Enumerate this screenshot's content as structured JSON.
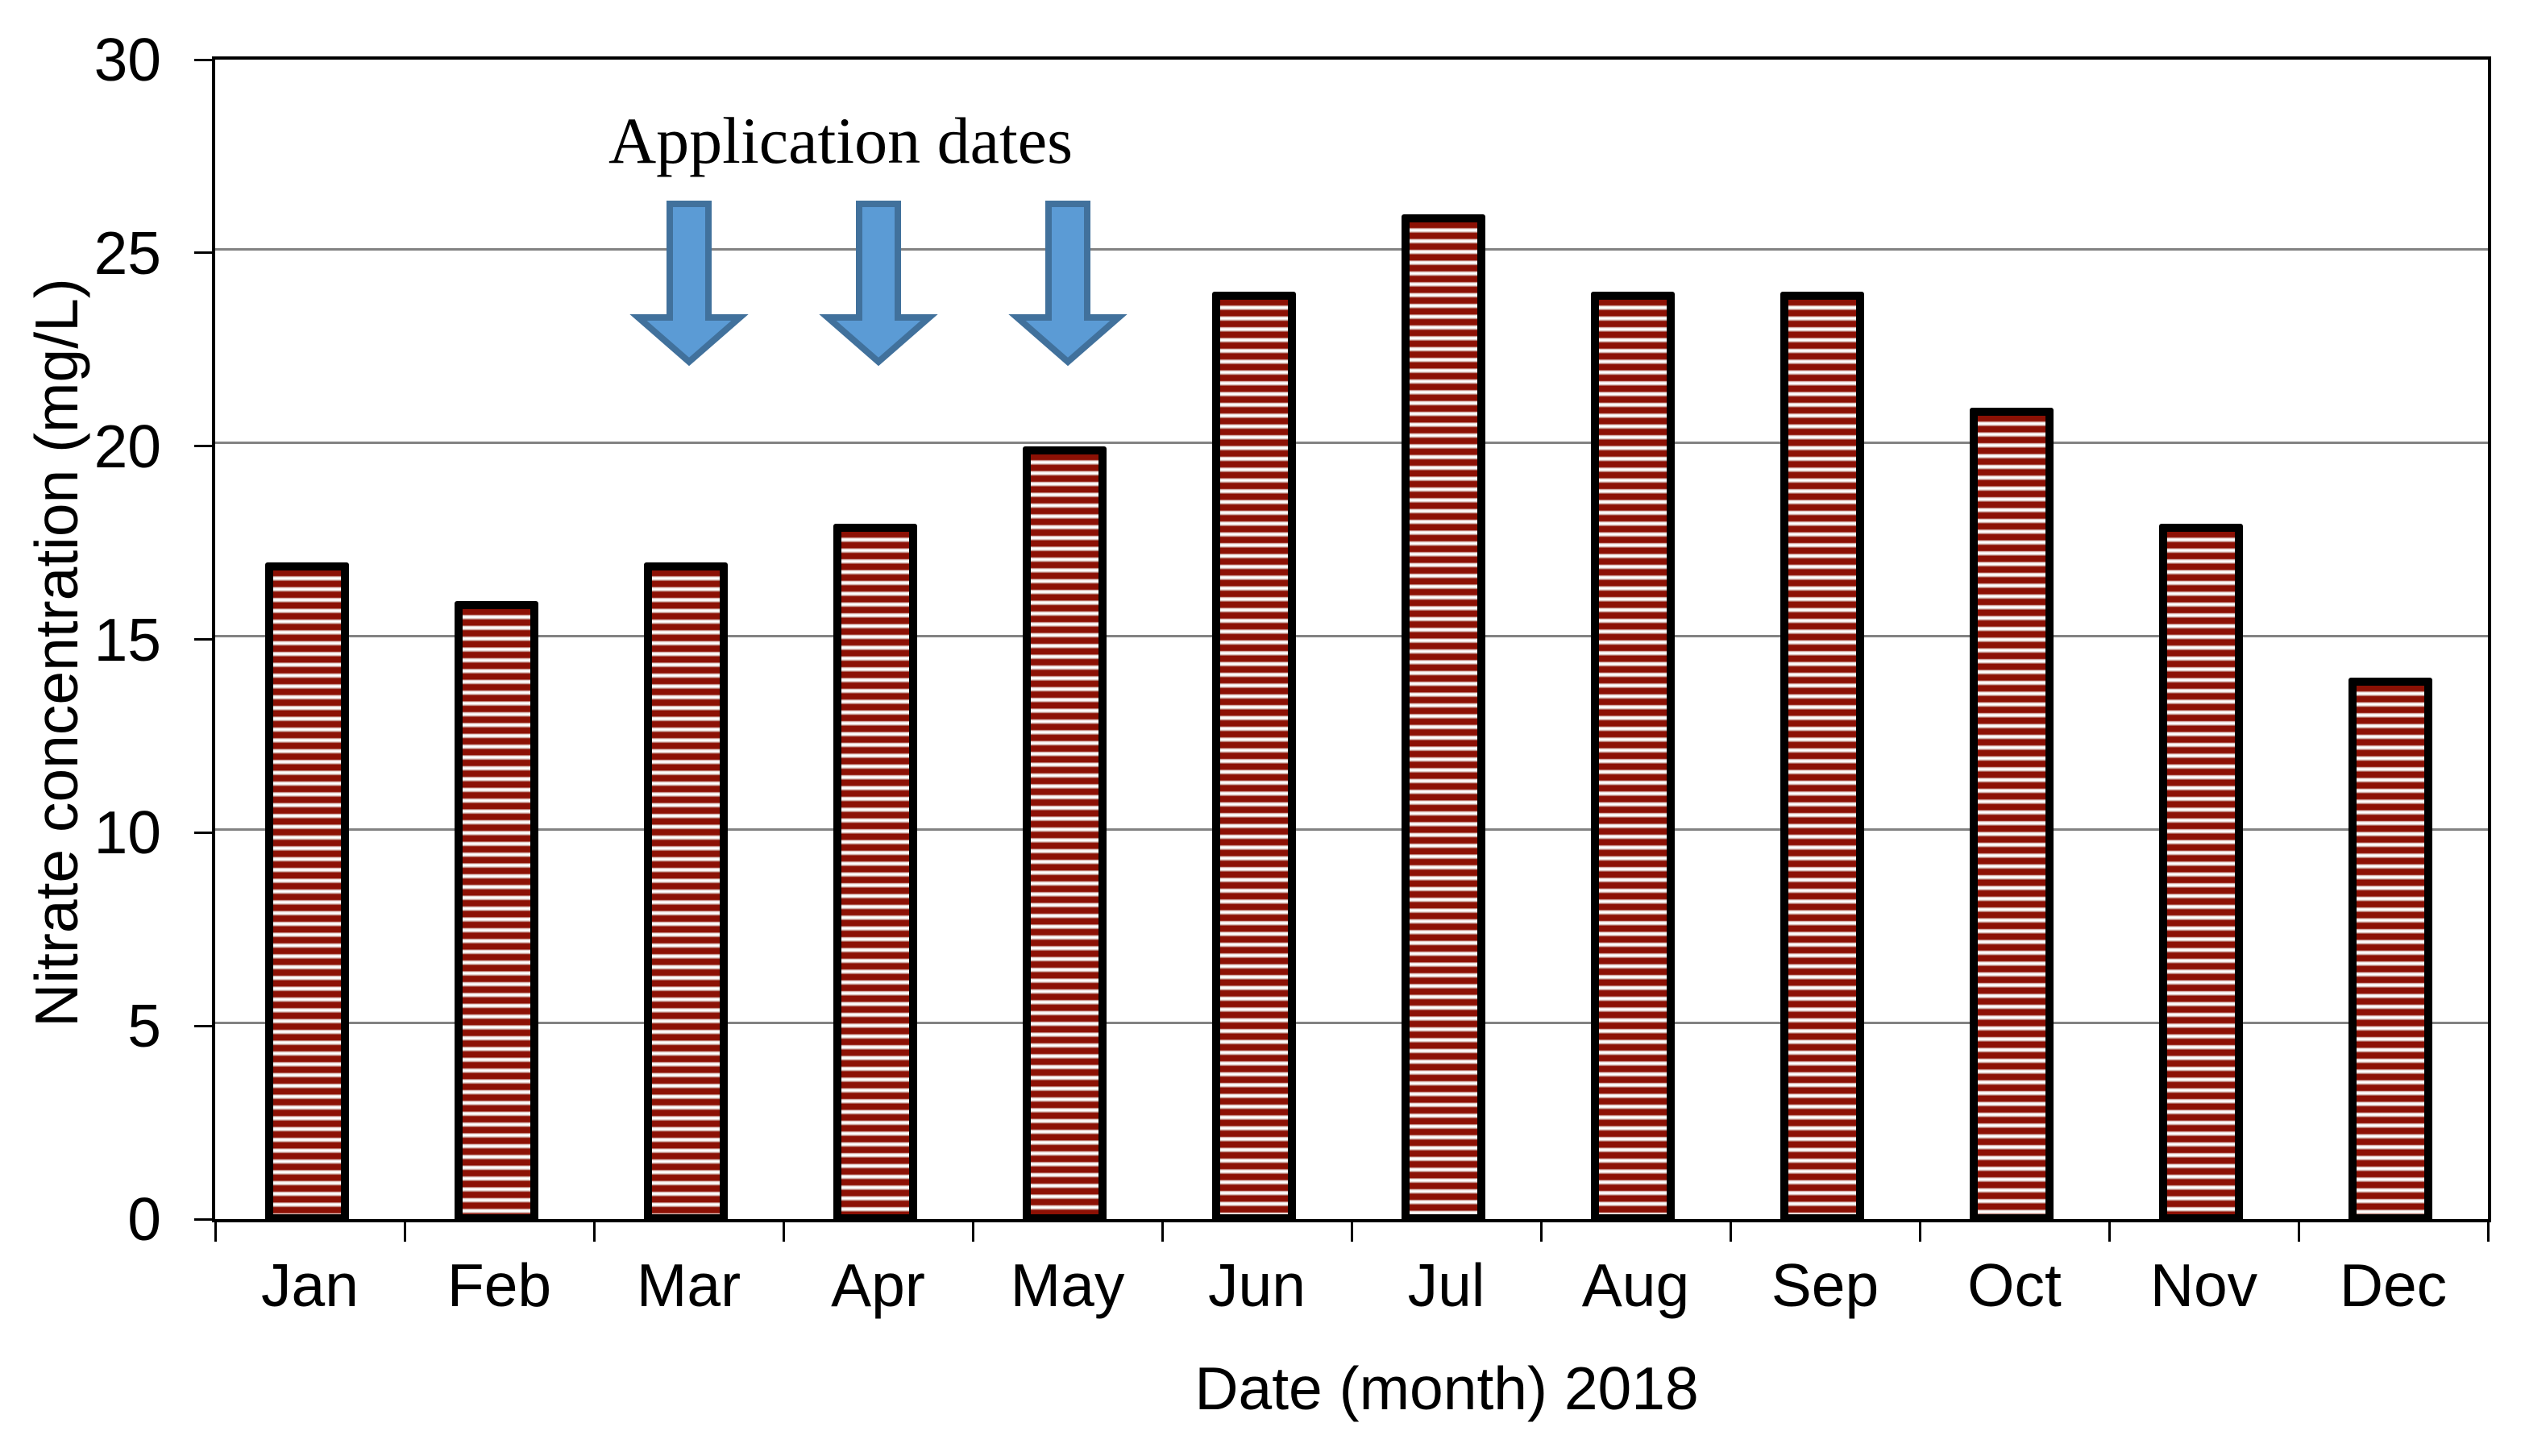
{
  "chart_data": {
    "type": "bar",
    "title": "",
    "categories": [
      "Jan",
      "Feb",
      "Mar",
      "Apr",
      "May",
      "Jun",
      "Jul",
      "Aug",
      "Sep",
      "Oct",
      "Nov",
      "Dec"
    ],
    "values": [
      17,
      16,
      17,
      18,
      20,
      24,
      26,
      24,
      24,
      21,
      18,
      14
    ],
    "xlabel": "Date (month) 2018",
    "ylabel": "Nitrate concentration (mg/L)",
    "ylim": [
      0,
      30
    ],
    "yticks": [
      0,
      5,
      10,
      15,
      20,
      25,
      30
    ],
    "grid": "horizontal-gray",
    "legend": "none",
    "annotation": {
      "label": "Application dates",
      "arrow_months": [
        "Mar",
        "Apr",
        "May"
      ]
    },
    "colors": {
      "bar_stripe": "#8c1105",
      "bar_stripe_light": "#ffffff",
      "bar_border": "#000000",
      "gridline": "#828282",
      "axis": "#000000",
      "arrow_fill": "#5b9bd5",
      "arrow_stroke": "#41719c",
      "text": "#000000",
      "background": "#ffffff"
    }
  }
}
